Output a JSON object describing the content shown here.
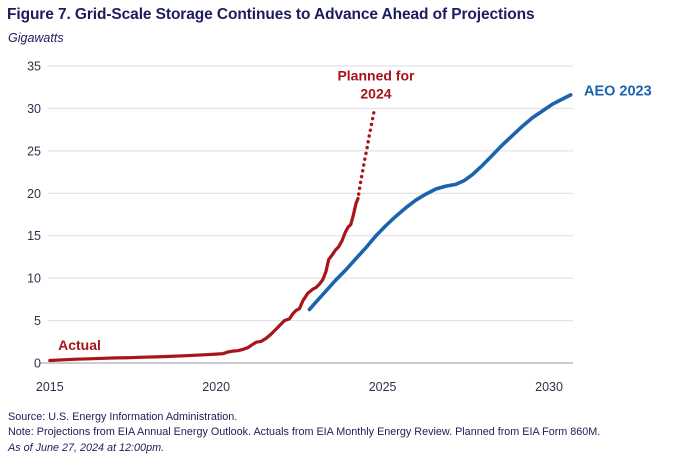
{
  "header": {
    "title": "Figure 7. Grid-Scale Storage Continues to Advance Ahead of Projections",
    "subtitle": "Gigawatts"
  },
  "footer": {
    "source": "Source: U.S. Energy Information Administration.",
    "note": "Note: Projections from EIA Annual Energy Outlook. Actuals from EIA Monthly Energy Review. Planned from EIA Form 860M.",
    "as_of": "As of June 27, 2024 at 12:00pm."
  },
  "chart_data": {
    "type": "line",
    "title": "Figure 7. Grid-Scale Storage Continues to Advance Ahead of Projections",
    "ylabel": "Gigawatts",
    "xlabel": "",
    "ylim": [
      0,
      35
    ],
    "xlim": [
      2015,
      2030.72
    ],
    "yticks": [
      0,
      5,
      10,
      15,
      20,
      25,
      30,
      35
    ],
    "xticks": [
      2015,
      2020,
      2025,
      2030
    ],
    "grid": true,
    "legend_position": "inline-annotations",
    "colors": {
      "actual": "#a81419",
      "planned": "#a81419",
      "projection": "#1b63ae",
      "gridline": "#dddde2",
      "axis": "#aeaeb4",
      "tick_text": "#30304b",
      "navy_text": "#1c1c5e"
    },
    "series": [
      {
        "name": "Actual",
        "style": "solid",
        "color": "#a81419",
        "width": 3.2,
        "points": [
          [
            2015.0,
            0.3
          ],
          [
            2015.4,
            0.38
          ],
          [
            2015.8,
            0.45
          ],
          [
            2016.2,
            0.5
          ],
          [
            2016.6,
            0.55
          ],
          [
            2017.0,
            0.6
          ],
          [
            2017.4,
            0.63
          ],
          [
            2017.8,
            0.68
          ],
          [
            2018.2,
            0.72
          ],
          [
            2018.6,
            0.78
          ],
          [
            2019.0,
            0.85
          ],
          [
            2019.4,
            0.92
          ],
          [
            2019.7,
            0.98
          ],
          [
            2020.0,
            1.05
          ],
          [
            2020.2,
            1.1
          ],
          [
            2020.35,
            1.3
          ],
          [
            2020.5,
            1.4
          ],
          [
            2020.65,
            1.45
          ],
          [
            2020.8,
            1.6
          ],
          [
            2020.95,
            1.8
          ],
          [
            2021.1,
            2.2
          ],
          [
            2021.2,
            2.45
          ],
          [
            2021.35,
            2.55
          ],
          [
            2021.5,
            2.9
          ],
          [
            2021.65,
            3.4
          ],
          [
            2021.8,
            4.0
          ],
          [
            2021.95,
            4.6
          ],
          [
            2022.05,
            5.0
          ],
          [
            2022.2,
            5.2
          ],
          [
            2022.3,
            5.8
          ],
          [
            2022.4,
            6.2
          ],
          [
            2022.5,
            6.4
          ],
          [
            2022.6,
            7.3
          ],
          [
            2022.75,
            8.2
          ],
          [
            2022.9,
            8.7
          ],
          [
            2023.0,
            8.9
          ],
          [
            2023.1,
            9.3
          ],
          [
            2023.2,
            9.8
          ],
          [
            2023.3,
            10.8
          ],
          [
            2023.38,
            12.2
          ],
          [
            2023.48,
            12.7
          ],
          [
            2023.58,
            13.3
          ],
          [
            2023.68,
            13.7
          ],
          [
            2023.78,
            14.4
          ],
          [
            2023.88,
            15.4
          ],
          [
            2023.96,
            16.0
          ],
          [
            2024.04,
            16.3
          ],
          [
            2024.12,
            17.4
          ],
          [
            2024.2,
            18.8
          ],
          [
            2024.26,
            19.4
          ]
        ]
      },
      {
        "name": "Planned for 2024",
        "style": "dotted",
        "color": "#a81419",
        "width": 3.4,
        "points": [
          [
            2024.28,
            19.9
          ],
          [
            2024.33,
            21.1
          ],
          [
            2024.38,
            22.2
          ],
          [
            2024.43,
            23.3
          ],
          [
            2024.48,
            24.3
          ],
          [
            2024.53,
            25.3
          ],
          [
            2024.57,
            26.2
          ],
          [
            2024.61,
            27.0
          ],
          [
            2024.65,
            27.8
          ],
          [
            2024.69,
            28.6
          ],
          [
            2024.72,
            29.2
          ],
          [
            2024.75,
            29.8
          ]
        ]
      },
      {
        "name": "AEO 2023",
        "style": "solid",
        "color": "#1b63ae",
        "width": 3.6,
        "points": [
          [
            2022.8,
            6.3
          ],
          [
            2023.0,
            7.2
          ],
          [
            2023.3,
            8.5
          ],
          [
            2023.6,
            9.8
          ],
          [
            2023.9,
            11.0
          ],
          [
            2024.2,
            12.3
          ],
          [
            2024.5,
            13.6
          ],
          [
            2024.8,
            15.0
          ],
          [
            2025.1,
            16.2
          ],
          [
            2025.4,
            17.3
          ],
          [
            2025.7,
            18.3
          ],
          [
            2026.0,
            19.2
          ],
          [
            2026.3,
            19.9
          ],
          [
            2026.6,
            20.5
          ],
          [
            2026.9,
            20.85
          ],
          [
            2027.2,
            21.05
          ],
          [
            2027.45,
            21.5
          ],
          [
            2027.7,
            22.2
          ],
          [
            2028.0,
            23.3
          ],
          [
            2028.3,
            24.5
          ],
          [
            2028.6,
            25.7
          ],
          [
            2028.9,
            26.8
          ],
          [
            2029.2,
            27.9
          ],
          [
            2029.5,
            28.9
          ],
          [
            2029.8,
            29.7
          ],
          [
            2030.1,
            30.5
          ],
          [
            2030.4,
            31.1
          ],
          [
            2030.65,
            31.6
          ]
        ]
      }
    ],
    "annotations": [
      {
        "lines": [
          "Actual"
        ],
        "x": 2015.25,
        "y": 2.15,
        "anchor": "start",
        "color": "#a81419",
        "size": 14
      },
      {
        "lines": [
          "Planned for",
          "2024"
        ],
        "x": 2024.8,
        "y": 32.8,
        "anchor": "middle",
        "color": "#a81419",
        "size": 14
      },
      {
        "lines": [
          "AEO 2023"
        ],
        "x": 2031.05,
        "y": 31.9,
        "anchor": "start",
        "color": "#1b63ae",
        "size": 14.5
      }
    ]
  }
}
